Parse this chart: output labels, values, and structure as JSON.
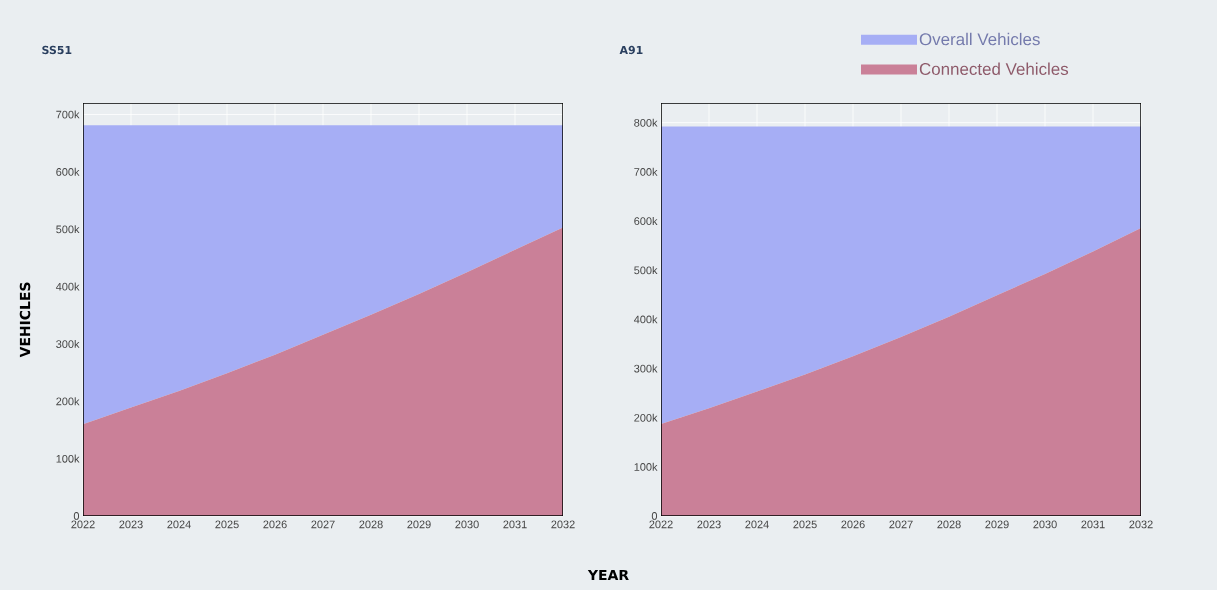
{
  "chart_data": [
    {
      "type": "area",
      "title": "SS51",
      "ylabel": "VEHICLES",
      "xlabel": "YEAR",
      "x": [
        2022,
        2023,
        2024,
        2025,
        2026,
        2027,
        2028,
        2029,
        2030,
        2031,
        2032
      ],
      "xlim": [
        2022,
        2032
      ],
      "xticks": [
        2022,
        2023,
        2024,
        2025,
        2026,
        2027,
        2028,
        2029,
        2030,
        2031,
        2032
      ],
      "ylim": [
        0,
        720000
      ],
      "yticks": [
        0,
        {
          "value": 100000,
          "label": "100k"
        },
        {
          "value": 200000,
          "label": "200k"
        },
        {
          "value": 300000,
          "label": "300k"
        },
        {
          "value": 400000,
          "label": "400k"
        },
        {
          "value": 500000,
          "label": "500k"
        },
        {
          "value": 600000,
          "label": "600k"
        },
        {
          "value": 700000,
          "label": "700k"
        }
      ],
      "grid": true,
      "series": [
        {
          "color": "#a6aef5",
          "values": [
            681000,
            681000,
            681000,
            681000,
            681000,
            681000,
            681000,
            681000,
            681000,
            681000,
            681000
          ]
        },
        {
          "color": "#ca8098",
          "values": [
            160000,
            189000,
            218000,
            249000,
            281000,
            316000,
            351000,
            387000,
            425000,
            464000,
            503000
          ]
        }
      ]
    },
    {
      "type": "area",
      "title": "A91",
      "x": [
        2022,
        2023,
        2024,
        2025,
        2026,
        2027,
        2028,
        2029,
        2030,
        2031,
        2032
      ],
      "xlim": [
        2022,
        2032
      ],
      "xticks": [
        2022,
        2023,
        2024,
        2025,
        2026,
        2027,
        2028,
        2029,
        2030,
        2031,
        2032
      ],
      "ylim": [
        0,
        840000
      ],
      "yticks": [
        0,
        {
          "value": 100000,
          "label": "100k"
        },
        {
          "value": 200000,
          "label": "200k"
        },
        {
          "value": 300000,
          "label": "300k"
        },
        {
          "value": 400000,
          "label": "400k"
        },
        {
          "value": 500000,
          "label": "500k"
        },
        {
          "value": 600000,
          "label": "600k"
        },
        {
          "value": 700000,
          "label": "700k"
        },
        {
          "value": 800000,
          "label": "800k"
        }
      ],
      "grid": true,
      "legend": "top right",
      "series": [
        {
          "name": "Overall Vehicles",
          "color": "#a6aef5",
          "values": [
            792000,
            792000,
            792000,
            792000,
            792000,
            792000,
            792000,
            792000,
            792000,
            792000,
            792000
          ]
        },
        {
          "name": "Connected Vehicles",
          "color": "#ca8098",
          "values": [
            187000,
            219000,
            253000,
            288000,
            325000,
            364000,
            405000,
            449000,
            492000,
            538000,
            586000
          ]
        }
      ]
    }
  ]
}
